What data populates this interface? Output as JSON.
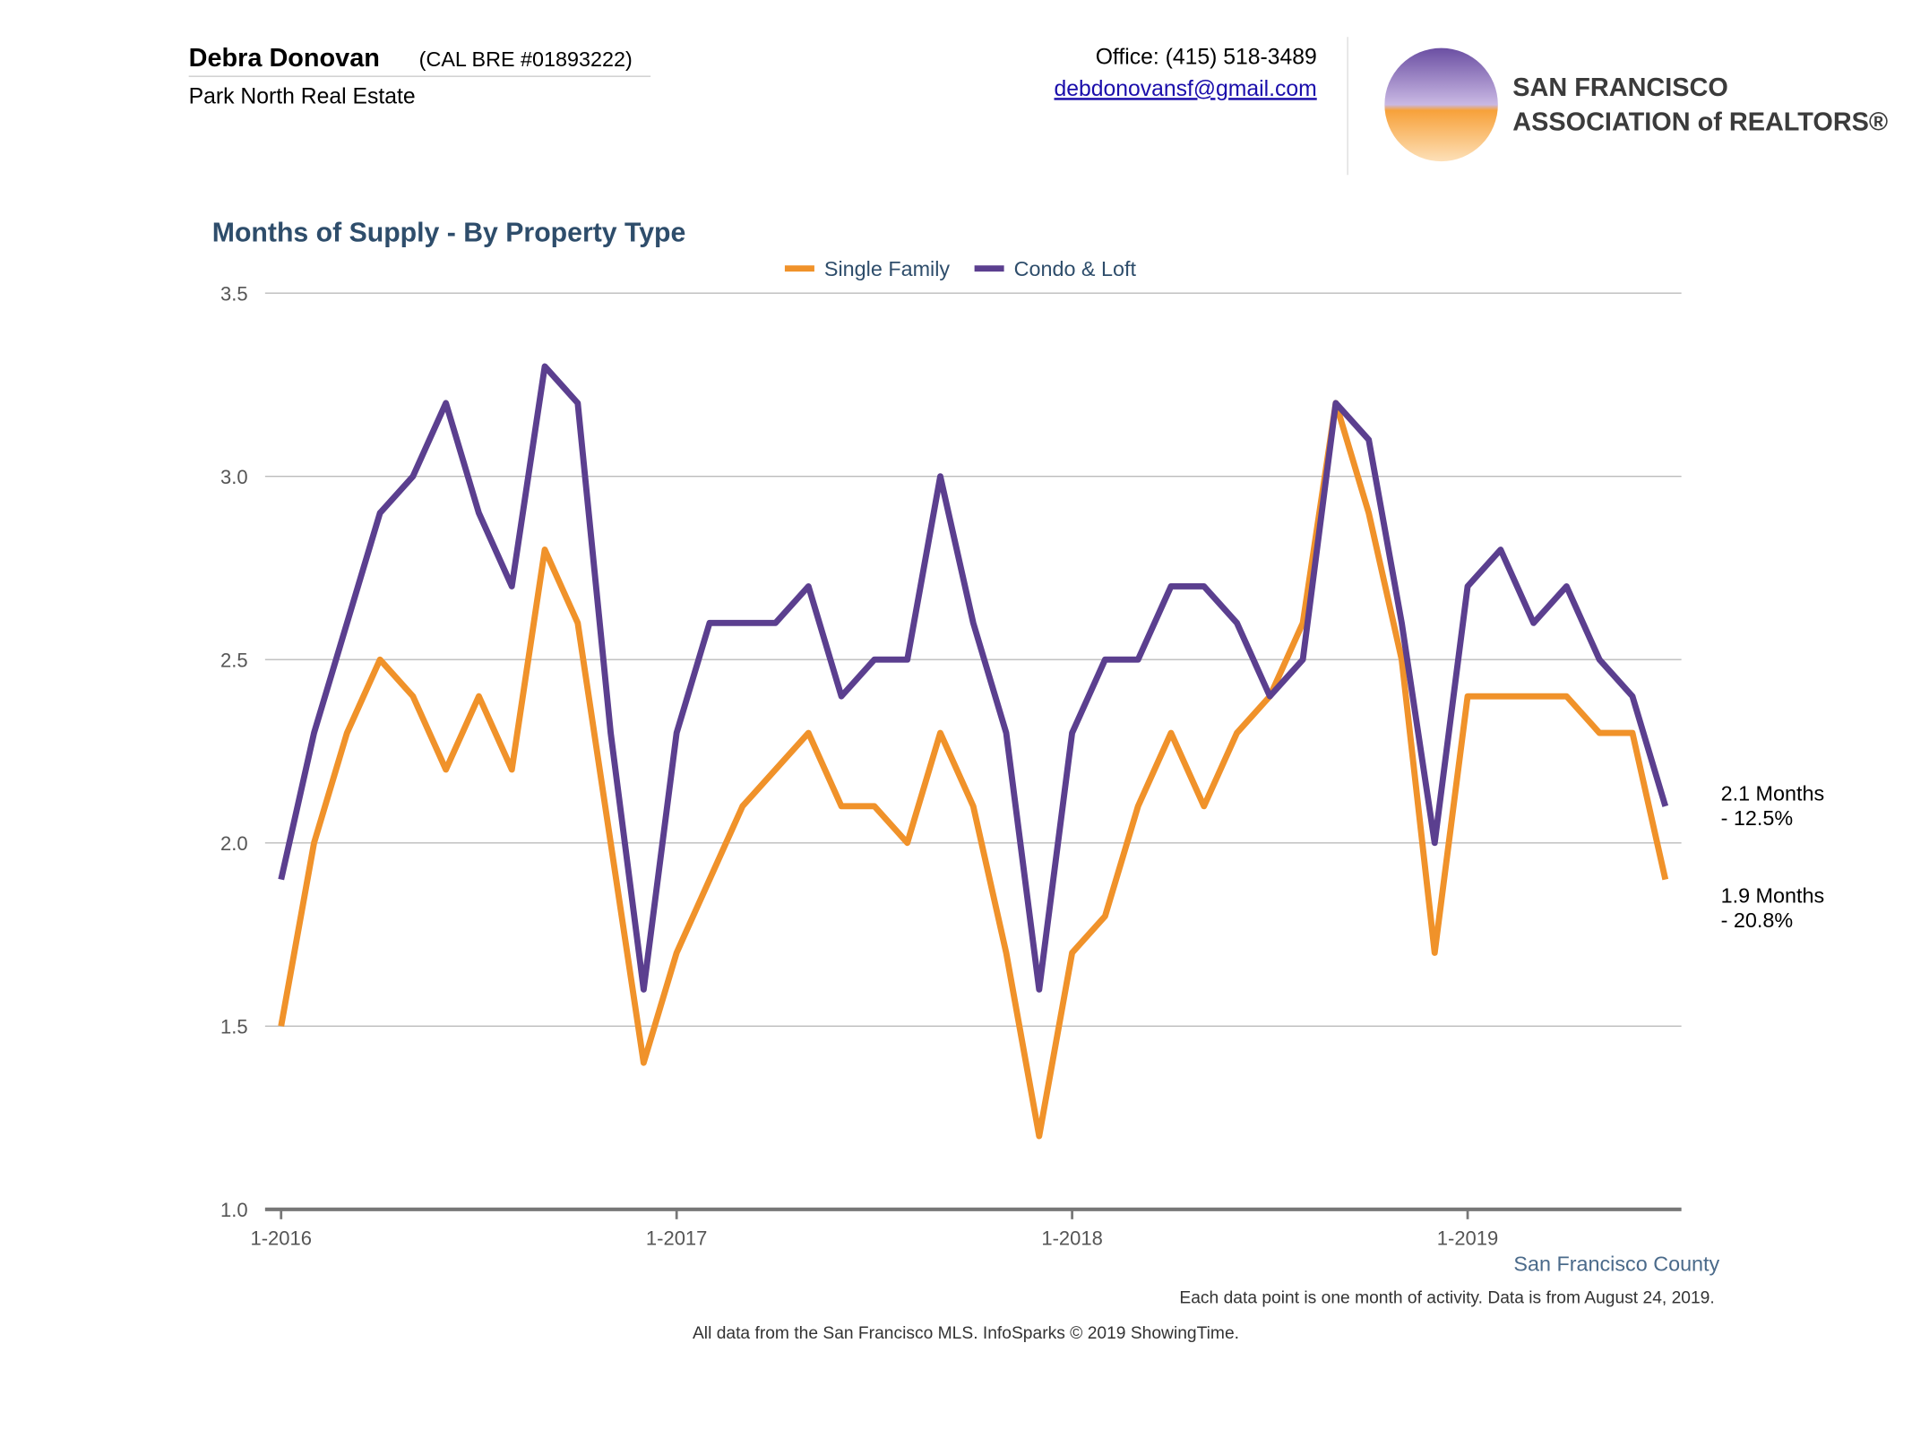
{
  "header": {
    "name": "Debra Donovan",
    "license": "(CAL BRE #01893222)",
    "company": "Park North Real Estate",
    "office": "Office: (415) 518-3489",
    "email": "debdonovansf@gmail.com",
    "logo_line1": "SAN FRANCISCO",
    "logo_line2": "ASSOCIATION of REALTORS®"
  },
  "chart_data": {
    "type": "line",
    "title": "Months of Supply - By Property Type",
    "categories": [
      "1-2016",
      null,
      null,
      null,
      null,
      null,
      null,
      null,
      null,
      null,
      null,
      null,
      "1-2017",
      null,
      null,
      null,
      null,
      null,
      null,
      null,
      null,
      null,
      null,
      null,
      "1-2018",
      null,
      null,
      null,
      null,
      null,
      null,
      null,
      null,
      null,
      null,
      null,
      "1-2019",
      null,
      null,
      null,
      null,
      null,
      null
    ],
    "series": [
      {
        "name": "Single Family",
        "color": "#f0922a",
        "values": [
          1.5,
          2.0,
          2.3,
          2.5,
          2.4,
          2.2,
          2.4,
          2.2,
          2.8,
          2.6,
          2.0,
          1.4,
          1.7,
          1.9,
          2.1,
          2.2,
          2.3,
          2.1,
          2.1,
          2.0,
          2.3,
          2.1,
          1.7,
          1.2,
          1.7,
          1.8,
          2.1,
          2.3,
          2.1,
          2.3,
          2.4,
          2.6,
          3.2,
          2.9,
          2.5,
          1.7,
          2.4,
          2.4,
          2.4,
          2.4,
          2.3,
          2.3,
          1.9
        ]
      },
      {
        "name": "Condo & Loft",
        "color": "#5b3f8f",
        "values": [
          1.9,
          2.3,
          2.6,
          2.9,
          3.0,
          3.2,
          2.9,
          2.7,
          3.3,
          3.2,
          2.3,
          1.6,
          2.3,
          2.6,
          2.6,
          2.6,
          2.7,
          2.4,
          2.5,
          2.5,
          3.0,
          2.6,
          2.3,
          1.6,
          2.3,
          2.5,
          2.5,
          2.7,
          2.7,
          2.6,
          2.4,
          2.5,
          3.2,
          3.1,
          2.6,
          2.0,
          2.7,
          2.8,
          2.6,
          2.7,
          2.5,
          2.4,
          2.1
        ]
      }
    ],
    "ylim": [
      1,
      3.5
    ],
    "yticks": [
      {
        "value": 1,
        "label": "1.0"
      },
      1.5,
      {
        "value": 2,
        "label": "2.0"
      },
      2.5,
      {
        "value": 3,
        "label": "3.0"
      },
      3.5
    ],
    "grid": true,
    "legend": "top",
    "annotations": [
      "2.1 Months",
      "- 12.5%",
      "1.9 Months",
      "- 20.8%"
    ],
    "region": "San Francisco County",
    "note": "Each data point is one month of activity. Data is from August 24, 2019.",
    "source": "All data from the San Francisco MLS. InfoSparks © 2019 ShowingTime."
  }
}
